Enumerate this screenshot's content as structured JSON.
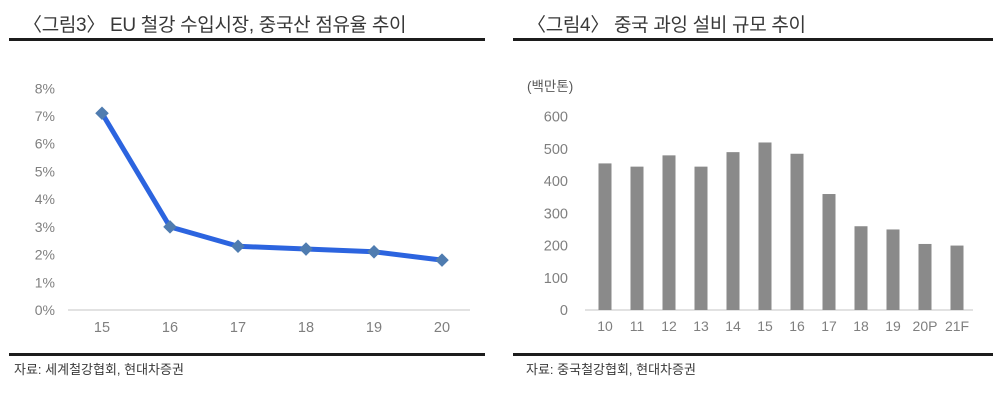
{
  "figures": {
    "fig3": {
      "title": "〈그림3〉 EU 철강 수입시장, 중국산 점유율 추이",
      "source": "자료: 세계철강협회, 현대차증권"
    },
    "fig4": {
      "title": "〈그림4〉 중국 과잉 설비 규모 추이",
      "source": "자료: 중국철강협회, 현대차증권"
    }
  },
  "chart_data": [
    {
      "type": "line",
      "title": "〈그림3〉 EU 철강 수입시장, 중국산 점유율 추이",
      "categories": [
        "15",
        "16",
        "17",
        "18",
        "19",
        "20"
      ],
      "values": [
        7.1,
        3.0,
        2.3,
        2.2,
        2.1,
        1.8
      ],
      "yticks": [
        "8%",
        "7%",
        "6%",
        "5%",
        "4%",
        "3%",
        "2%",
        "1%",
        "0%"
      ],
      "ylim": [
        0,
        8
      ],
      "grid": false,
      "legend": "none",
      "marker": "diamond",
      "line_color": "#2c64df",
      "marker_color": "#4f7cb0",
      "axis_text_color": "#7f7f7f",
      "axis_line_color": "#d8d8d8",
      "source": "자료: 세계철강협회, 현대차증권"
    },
    {
      "type": "bar",
      "title": "〈그림4〉 중국 과잉 설비 규모 추이",
      "unit": "(백만톤)",
      "categories": [
        "10",
        "11",
        "12",
        "13",
        "14",
        "15",
        "16",
        "17",
        "18",
        "19",
        "20P",
        "21F"
      ],
      "values": [
        455,
        445,
        480,
        445,
        490,
        520,
        485,
        360,
        260,
        250,
        205,
        200
      ],
      "yticks": [
        600,
        500,
        400,
        300,
        200,
        100,
        0
      ],
      "ylim": [
        0,
        600
      ],
      "grid": false,
      "legend": "none",
      "bar_color": "#8a8a8a",
      "axis_text_color": "#7f7f7f",
      "axis_line_color": "#d8d8d8",
      "source": "자료: 중국철강협회, 현대차증권"
    }
  ]
}
